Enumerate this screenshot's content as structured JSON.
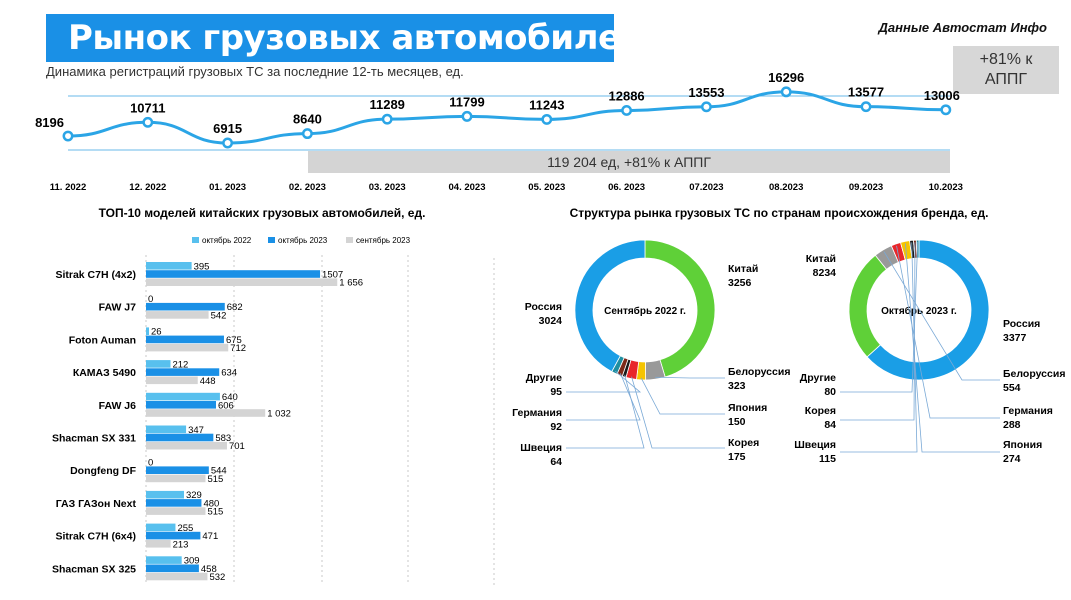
{
  "header": {
    "title": "Рынок грузовых автомобилей",
    "source": "Данные Автостат Инфо",
    "subtitle": "Динамика регистраций грузовых ТС за последние 12-ть месяцев, ед.",
    "yoy_badge_line1": "+81% к",
    "yoy_badge_line2": "АППГ",
    "summary": "119 204 ед, +81% к АППГ"
  },
  "colors": {
    "line": "#2ba5e6",
    "oct2022": "#58c0ee",
    "oct2023": "#1a90e6",
    "sep2023": "#d4d4d4",
    "china": "#5fd038",
    "russia": "#1a9ee6",
    "banner": "#1a90e6"
  },
  "chart_data": [
    {
      "type": "line",
      "x": [
        "11. 2022",
        "12. 2022",
        "01. 2023",
        "02. 2023",
        "03. 2023",
        "04. 2023",
        "05. 2023",
        "06. 2023",
        "07.2023",
        "08.2023",
        "09.2023",
        "10.2023"
      ],
      "values": [
        8196,
        10711,
        6915,
        8640,
        11289,
        11799,
        11243,
        12886,
        13553,
        16296,
        13577,
        13006
      ]
    },
    {
      "type": "bar",
      "title": "ТОП-10 моделей китайских грузовых автомобилей, ед.",
      "categories": [
        "Sitrak C7H (4x2)",
        "FAW J7",
        "Foton Auman",
        "КАМАЗ 5490",
        "FAW J6",
        "Shacman SX 331",
        "Dongfeng DF",
        "ГАЗ ГАЗон Next",
        "Sitrak C7H (6x4)",
        "Shacman SX 325"
      ],
      "series": [
        {
          "name": "октябрь 2022",
          "values": [
            395,
            0,
            26,
            212,
            640,
            347,
            0,
            329,
            255,
            309
          ],
          "labels": [
            "395",
            "0",
            "26",
            "212",
            "640",
            "347",
            "0",
            "329",
            "255",
            "309"
          ]
        },
        {
          "name": "октябрь 2023",
          "values": [
            1507,
            682,
            675,
            634,
            606,
            583,
            544,
            480,
            471,
            458
          ],
          "labels": [
            "1507",
            "682",
            "675",
            "634",
            "606",
            "583",
            "544",
            "480",
            "471",
            "458"
          ]
        },
        {
          "name": "сентябрь 2023",
          "values": [
            1656,
            542,
            712,
            448,
            1032,
            701,
            515,
            515,
            213,
            532
          ],
          "labels": [
            "1 656",
            "542",
            "712",
            "448",
            "1 032",
            "701",
            "515",
            "515",
            "213",
            "532"
          ]
        }
      ],
      "xlim": [
        0,
        1800
      ]
    },
    {
      "type": "pie",
      "title": "Структура рынка грузовых ТС по странам происхождения бренда, ед.",
      "center_label": "Сентябрь 2022 г.",
      "slices": [
        {
          "name": "Китай",
          "value": 3256,
          "color": "#5fd038"
        },
        {
          "name": "Белоруссия",
          "value": 323,
          "color": "#999999"
        },
        {
          "name": "Япония",
          "value": 150,
          "color": "#f5c400"
        },
        {
          "name": "Корея",
          "value": 175,
          "color": "#e8262a"
        },
        {
          "name": "Швеция",
          "value": 64,
          "color": "#1a1a1a"
        },
        {
          "name": "Германия",
          "value": 92,
          "color": "#7d2a1a"
        },
        {
          "name": "Другие",
          "value": 95,
          "color": "#1f8fa0"
        },
        {
          "name": "Россия",
          "value": 3024,
          "color": "#1a9ee6"
        }
      ]
    },
    {
      "type": "pie",
      "center_label": "Октябрь 2023 г.",
      "slices": [
        {
          "name": "Китай",
          "value": 8234,
          "color": "#1a9ee6"
        },
        {
          "name": "Россия",
          "value": 3377,
          "color": "#5fd038"
        },
        {
          "name": "Белоруссия",
          "value": 554,
          "color": "#999999"
        },
        {
          "name": "Германия",
          "value": 288,
          "color": "#e8262a"
        },
        {
          "name": "Япония",
          "value": 274,
          "color": "#f5c400"
        },
        {
          "name": "Швеция",
          "value": 115,
          "color": "#1a1a1a"
        },
        {
          "name": "Корея",
          "value": 84,
          "color": "#7d2a1a"
        },
        {
          "name": "Другие",
          "value": 80,
          "color": "#1f8fa0"
        }
      ]
    }
  ]
}
